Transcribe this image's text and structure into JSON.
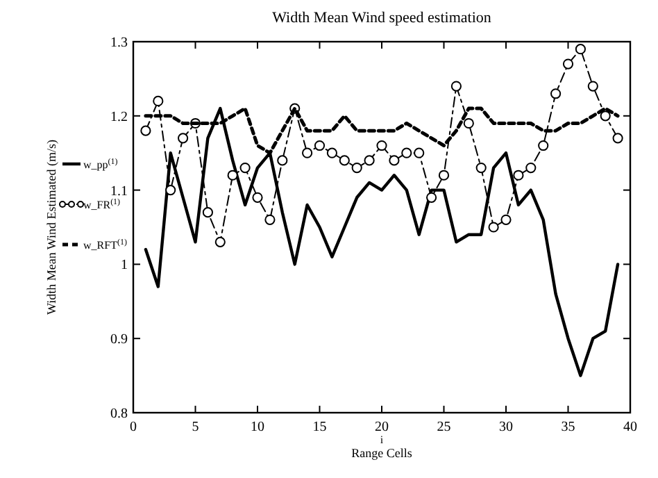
{
  "chart_data": {
    "type": "line",
    "title": "Width Mean Wind speed estimation",
    "xlabel": "Range Cells",
    "ylabel": "Width Mean Wind Estimated (m/s)",
    "annotations": [
      "i"
    ],
    "x": [
      1,
      2,
      3,
      4,
      5,
      6,
      7,
      8,
      9,
      10,
      11,
      12,
      13,
      14,
      15,
      16,
      17,
      18,
      19,
      20,
      21,
      22,
      23,
      24,
      25,
      26,
      27,
      28,
      29,
      30,
      31,
      32,
      33,
      34,
      35,
      36,
      37,
      38,
      39
    ],
    "series": [
      {
        "name": "w_pp$^{(1)}$",
        "color": "#000000",
        "line_style": "solid",
        "marker": "none",
        "values": [
          1.02,
          0.97,
          1.15,
          1.09,
          1.03,
          1.17,
          1.21,
          1.14,
          1.08,
          1.13,
          1.15,
          1.07,
          1.0,
          1.08,
          1.05,
          1.01,
          1.05,
          1.09,
          1.11,
          1.1,
          1.12,
          1.1,
          1.04,
          1.1,
          1.1,
          1.03,
          1.04,
          1.04,
          1.13,
          1.15,
          1.08,
          1.1,
          1.06,
          0.96,
          0.9,
          0.85,
          0.9,
          0.91,
          1.0
        ]
      },
      {
        "name": "w_FR$^{(1)}$",
        "color": "#000000",
        "line_style": "dashed",
        "marker": "circle",
        "values": [
          1.18,
          1.22,
          1.1,
          1.17,
          1.19,
          1.07,
          1.03,
          1.12,
          1.13,
          1.09,
          1.06,
          1.14,
          1.21,
          1.15,
          1.16,
          1.15,
          1.14,
          1.13,
          1.14,
          1.16,
          1.14,
          1.15,
          1.15,
          1.09,
          1.12,
          1.24,
          1.19,
          1.13,
          1.05,
          1.06,
          1.12,
          1.13,
          1.16,
          1.23,
          1.27,
          1.29,
          1.24,
          1.2,
          1.17
        ]
      },
      {
        "name": "w_RFT$^{(1)}$",
        "color": "#000000",
        "line_style": "dotted",
        "marker": "none",
        "values": [
          1.2,
          1.2,
          1.2,
          1.19,
          1.19,
          1.19,
          1.19,
          1.2,
          1.21,
          1.16,
          1.15,
          1.18,
          1.21,
          1.18,
          1.18,
          1.18,
          1.2,
          1.18,
          1.18,
          1.18,
          1.18,
          1.19,
          1.18,
          1.17,
          1.16,
          1.18,
          1.21,
          1.21,
          1.19,
          1.19,
          1.19,
          1.19,
          1.18,
          1.18,
          1.19,
          1.19,
          1.2,
          1.21,
          1.2
        ]
      }
    ],
    "xlim": [
      0,
      40
    ],
    "xticks": [
      0,
      5,
      10,
      15,
      20,
      25,
      30,
      35,
      40
    ],
    "ylim": [
      0.8,
      1.3
    ],
    "yticks": [
      0.8,
      0.9,
      1,
      1.1,
      1.2,
      1.3
    ],
    "grid": false,
    "legend": "left"
  }
}
